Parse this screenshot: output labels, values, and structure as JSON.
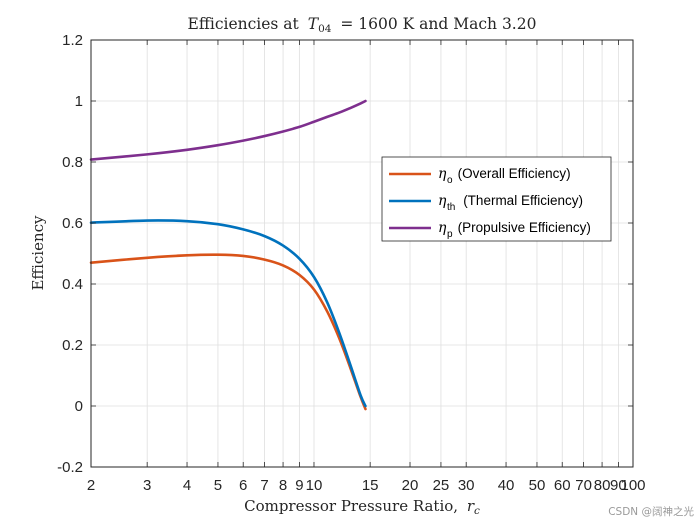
{
  "chart_data": {
    "type": "line",
    "title": "Efficiencies at T04 = 1600 K and Mach 3.20",
    "title_parts": {
      "prefix": "Efficiencies at",
      "var": "T",
      "var_sub": "04",
      "suffix": "= 1600 K and Mach 3.20"
    },
    "xlabel": "Compressor Pressure Ratio, rc",
    "xlabel_parts": {
      "prefix": "Compressor Pressure Ratio,",
      "var": "r",
      "var_sub": "c"
    },
    "ylabel": "Efficiency",
    "xscale": "log",
    "xlim": [
      2,
      100
    ],
    "ylim": [
      -0.2,
      1.2
    ],
    "grid": true,
    "xticks": [
      2,
      3,
      4,
      5,
      6,
      7,
      8,
      9,
      10,
      15,
      20,
      25,
      30,
      40,
      50,
      60,
      70,
      80,
      90,
      100
    ],
    "xtick_labels": [
      "2",
      "3",
      "4",
      "5",
      "6",
      "7",
      "8",
      "9",
      "10",
      "15",
      "20",
      "25",
      "30",
      "40",
      "50",
      "60",
      "70",
      "80",
      "90",
      "100"
    ],
    "yticks": [
      -0.2,
      0,
      0.2,
      0.4,
      0.6,
      0.8,
      1,
      1.2
    ],
    "ytick_labels": [
      "-0.2",
      "0",
      "0.2",
      "0.4",
      "0.6",
      "0.8",
      "1",
      "1.2"
    ],
    "legend_location": "upper-right",
    "series": [
      {
        "name": "ηo (Overall Efficiency)",
        "symbol": "η",
        "sub": "o",
        "desc": "(Overall Efficiency)",
        "color": "#D95319",
        "x": [
          2,
          3,
          4,
          5,
          6,
          7,
          8,
          9,
          10,
          11,
          12,
          13,
          14,
          14.5
        ],
        "y": [
          0.47,
          0.486,
          0.494,
          0.496,
          0.492,
          0.48,
          0.461,
          0.43,
          0.382,
          0.31,
          0.222,
          0.125,
          0.03,
          -0.01
        ]
      },
      {
        "name": "ηth (Thermal Efficiency)",
        "symbol": "η",
        "sub": "th",
        "desc": "(Thermal Efficiency)",
        "color": "#0072BD",
        "x": [
          2,
          3,
          4,
          5,
          6,
          7,
          8,
          9,
          10,
          11,
          12,
          13,
          14,
          14.5
        ],
        "y": [
          0.601,
          0.608,
          0.606,
          0.596,
          0.579,
          0.557,
          0.526,
          0.483,
          0.423,
          0.34,
          0.24,
          0.135,
          0.035,
          0.0
        ]
      },
      {
        "name": "ηp (Propulsive Efficiency)",
        "symbol": "η",
        "sub": "p",
        "desc": "(Propulsive Efficiency)",
        "color": "#7E2F8E",
        "x": [
          2,
          3,
          4,
          5,
          6,
          7,
          8,
          9,
          10,
          11,
          12,
          13,
          14,
          14.5
        ],
        "y": [
          0.808,
          0.825,
          0.84,
          0.855,
          0.87,
          0.885,
          0.9,
          0.915,
          0.932,
          0.948,
          0.962,
          0.977,
          0.992,
          1.0
        ]
      }
    ]
  },
  "watermark": "CSDN @阔神之光"
}
